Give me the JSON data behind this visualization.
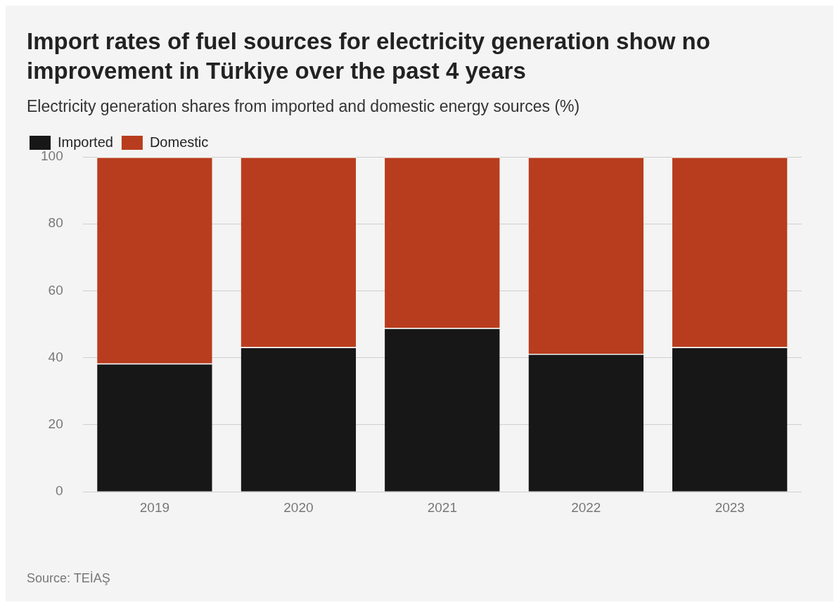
{
  "chart_data": {
    "type": "bar",
    "title": "Import rates of fuel sources for electricity generation show no improvement in Türkiye over the past 4 years",
    "subtitle": "Electricity generation shares from imported and domestic energy sources (%)",
    "categories": [
      "2019",
      "2020",
      "2021",
      "2022",
      "2023"
    ],
    "stacked": true,
    "series": [
      {
        "name": "Imported",
        "color": "#171717",
        "values": [
          38.3,
          43.2,
          48.9,
          41.2,
          43.2
        ]
      },
      {
        "name": "Domestic",
        "color": "#b83d1e",
        "values": [
          61.7,
          56.8,
          51.1,
          58.8,
          56.8
        ]
      }
    ],
    "ylim": [
      0,
      100
    ],
    "yticks": [
      0,
      20,
      40,
      60,
      80,
      100
    ],
    "grid": "y",
    "legend": "top left",
    "annotations": [
      "Source: TEİAŞ"
    ]
  }
}
